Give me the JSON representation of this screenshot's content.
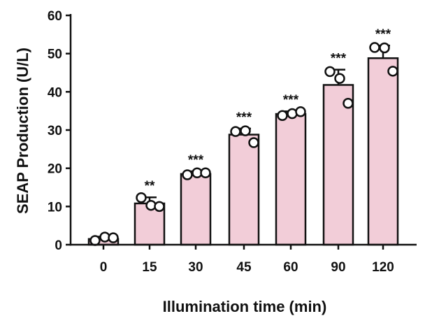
{
  "chart_data": {
    "type": "bar",
    "categories": [
      "0",
      "15",
      "30",
      "45",
      "60",
      "90",
      "120"
    ],
    "values": [
      1.5,
      10.8,
      18.5,
      28.8,
      34.2,
      41.8,
      48.8
    ],
    "errors": [
      0.6,
      1.6,
      0.7,
      1.6,
      0.7,
      4.0,
      3.3
    ],
    "points": [
      [
        1.1,
        2.0,
        1.8
      ],
      [
        12.3,
        10.3,
        10.0
      ],
      [
        18.3,
        18.8,
        18.8
      ],
      [
        29.6,
        29.8,
        26.7
      ],
      [
        33.8,
        34.3,
        34.8
      ],
      [
        45.3,
        43.5,
        37.0
      ],
      [
        51.6,
        51.5,
        45.4
      ]
    ],
    "significance": [
      "",
      "**",
      "***",
      "***",
      "***",
      "***",
      "***"
    ],
    "xlabel": "Illumination time (min)",
    "ylabel": "SEAP Production (U/L)",
    "ylim": [
      0,
      60
    ],
    "yticks": [
      0,
      10,
      20,
      30,
      40,
      50,
      60
    ],
    "grid": false,
    "bar_color": "#f2cdd8",
    "edge_color": "#111111",
    "point_fill": "#ffffff"
  }
}
